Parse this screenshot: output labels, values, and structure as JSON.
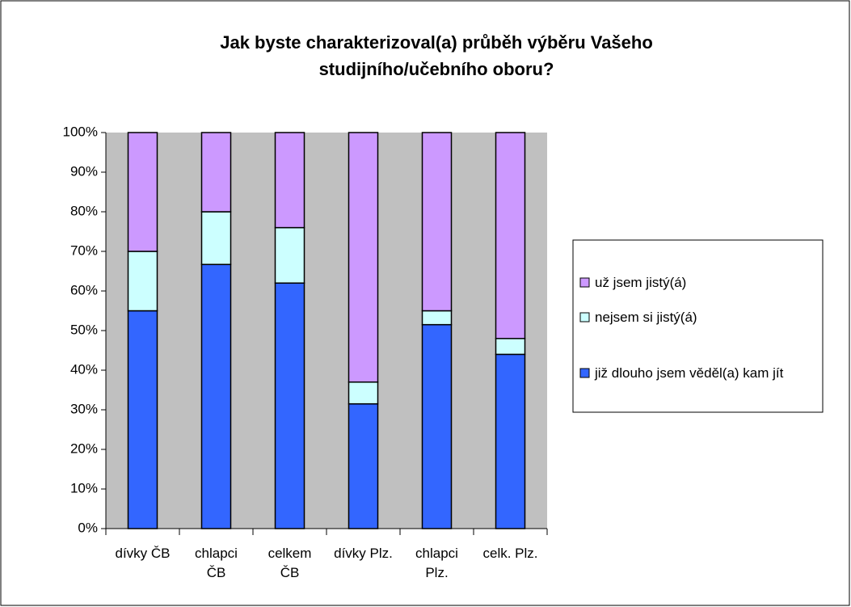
{
  "chart_data": {
    "type": "bar",
    "stacked": true,
    "title": "Jak byste charakterizoval(a) průběh výběru Vašeho studijního/učebního oboru?",
    "categories": [
      "dívky ČB",
      "chlapci ČB",
      "celkem ČB",
      "dívky Plz.",
      "chlapci Plz.",
      "celk. Plz."
    ],
    "series": [
      {
        "name": "již dlouho jsem věděl(a) kam jít",
        "color": "#3366ff",
        "values": [
          55,
          66.7,
          62,
          31.5,
          51.5,
          44
        ]
      },
      {
        "name": "nejsem si jistý(á)",
        "color": "#ccffff",
        "values": [
          15,
          13.3,
          14,
          5.5,
          3.5,
          4
        ]
      },
      {
        "name": "už jsem jistý(á)",
        "color": "#cc99ff",
        "values": [
          30,
          20,
          24,
          63,
          45,
          52
        ]
      }
    ],
    "ylim": [
      0,
      100
    ],
    "yticks": [
      {
        "value": 0,
        "label": "0%"
      },
      {
        "value": 10,
        "label": "10%"
      },
      {
        "value": 20,
        "label": "20%"
      },
      {
        "value": 30,
        "label": "30%"
      },
      {
        "value": 40,
        "label": "40%"
      },
      {
        "value": 50,
        "label": "50%"
      },
      {
        "value": 60,
        "label": "60%"
      },
      {
        "value": 70,
        "label": "70%"
      },
      {
        "value": 80,
        "label": "80%"
      },
      {
        "value": 90,
        "label": "90%"
      },
      {
        "value": 100,
        "label": "100%"
      }
    ],
    "legend": "right"
  }
}
